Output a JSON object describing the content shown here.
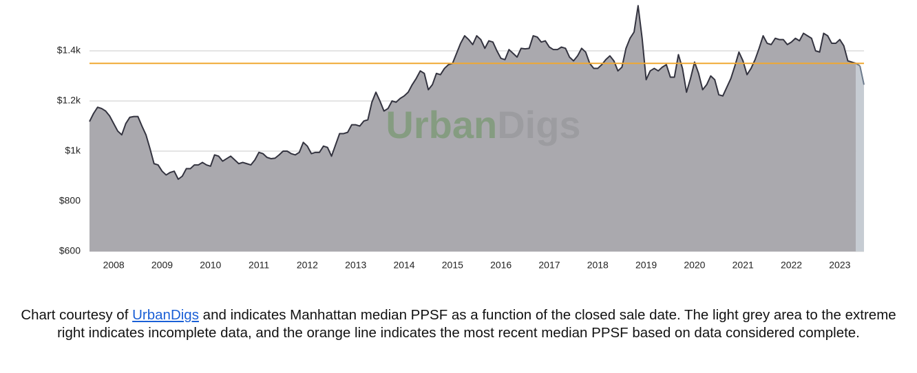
{
  "chart_data": {
    "type": "area",
    "watermark": [
      "Urban",
      "Digs"
    ],
    "watermark_colors": [
      "#7f9a7a",
      "#9a9a9e"
    ],
    "categories": [
      null,
      null,
      null,
      null,
      null,
      null,
      "2008",
      null,
      null,
      null,
      null,
      null,
      null,
      null,
      null,
      null,
      null,
      null,
      "2009",
      null,
      null,
      null,
      null,
      null,
      null,
      null,
      null,
      null,
      null,
      null,
      "2010",
      null,
      null,
      null,
      null,
      null,
      null,
      null,
      null,
      null,
      null,
      null,
      "2011",
      null,
      null,
      null,
      null,
      null,
      null,
      null,
      null,
      null,
      null,
      null,
      "2012",
      null,
      null,
      null,
      null,
      null,
      null,
      null,
      null,
      null,
      null,
      null,
      "2013",
      null,
      null,
      null,
      null,
      null,
      null,
      null,
      null,
      null,
      null,
      null,
      "2014",
      null,
      null,
      null,
      null,
      null,
      null,
      null,
      null,
      null,
      null,
      null,
      "2015",
      null,
      null,
      null,
      null,
      null,
      null,
      null,
      null,
      null,
      null,
      null,
      "2016",
      null,
      null,
      null,
      null,
      null,
      null,
      null,
      null,
      null,
      null,
      null,
      "2017",
      null,
      null,
      null,
      null,
      null,
      null,
      null,
      null,
      null,
      null,
      null,
      "2018",
      null,
      null,
      null,
      null,
      null,
      null,
      null,
      null,
      null,
      null,
      null,
      "2019",
      null,
      null,
      null,
      null,
      null,
      null,
      null,
      null,
      null,
      null,
      null,
      "2020",
      null,
      null,
      null,
      null,
      null,
      null,
      null,
      null,
      null,
      null,
      null,
      "2021",
      null,
      null,
      null,
      null,
      null,
      null,
      null,
      null,
      null,
      null,
      null,
      "2022",
      null,
      null,
      null,
      null,
      null,
      null,
      null,
      null,
      null,
      null,
      null,
      "2023",
      null,
      null,
      null,
      null,
      null,
      null
    ],
    "series": [
      {
        "color": "#33333f",
        "fill": "#aaa9ae",
        "values": [
          1118,
          1150,
          1175,
          1170,
          1160,
          1140,
          1110,
          1080,
          1065,
          1110,
          1135,
          1138,
          1138,
          1100,
          1065,
          1010,
          950,
          945,
          920,
          905,
          915,
          920,
          888,
          900,
          930,
          930,
          945,
          945,
          955,
          945,
          940,
          985,
          980,
          960,
          970,
          980,
          965,
          950,
          955,
          950,
          945,
          965,
          995,
          990,
          975,
          970,
          972,
          985,
          1000,
          1000,
          990,
          985,
          995,
          1035,
          1020,
          990,
          995,
          995,
          1020,
          1015,
          980,
          1025,
          1070,
          1070,
          1075,
          1105,
          1105,
          1100,
          1120,
          1125,
          1195,
          1235,
          1200,
          1160,
          1170,
          1200,
          1195,
          1210,
          1220,
          1235,
          1265,
          1290,
          1320,
          1310,
          1245,
          1265,
          1310,
          1305,
          1330,
          1345,
          1350,
          1390,
          1430,
          1460,
          1445,
          1425,
          1460,
          1445,
          1410,
          1440,
          1435,
          1400,
          1370,
          1365,
          1405,
          1390,
          1375,
          1410,
          1408,
          1410,
          1460,
          1455,
          1435,
          1440,
          1415,
          1405,
          1405,
          1415,
          1410,
          1375,
          1360,
          1380,
          1410,
          1395,
          1350,
          1330,
          1330,
          1345,
          1365,
          1380,
          1360,
          1320,
          1335,
          1410,
          1450,
          1475,
          1580,
          1450,
          1285,
          1320,
          1330,
          1320,
          1335,
          1345,
          1295,
          1295,
          1385,
          1330,
          1235,
          1290,
          1355,
          1310,
          1245,
          1265,
          1300,
          1285,
          1225,
          1220,
          1255,
          1290,
          1340,
          1395,
          1360,
          1305,
          1330,
          1365,
          1410,
          1460,
          1430,
          1425,
          1450,
          1445,
          1445,
          1425,
          1435,
          1450,
          1440,
          1470,
          1460,
          1450,
          1400,
          1395,
          1470,
          1460,
          1430,
          1430,
          1445,
          1420,
          1360,
          1355,
          1350,
          null,
          null
        ]
      },
      {
        "color": "#6c7a8c",
        "fill": "#c6ccd3",
        "values": [
          null,
          null,
          null,
          null,
          null,
          null,
          null,
          null,
          null,
          null,
          null,
          null,
          null,
          null,
          null,
          null,
          null,
          null,
          null,
          null,
          null,
          null,
          null,
          null,
          null,
          null,
          null,
          null,
          null,
          null,
          null,
          null,
          null,
          null,
          null,
          null,
          null,
          null,
          null,
          null,
          null,
          null,
          null,
          null,
          null,
          null,
          null,
          null,
          null,
          null,
          null,
          null,
          null,
          null,
          null,
          null,
          null,
          null,
          null,
          null,
          null,
          null,
          null,
          null,
          null,
          null,
          null,
          null,
          null,
          null,
          null,
          null,
          null,
          null,
          null,
          null,
          null,
          null,
          null,
          null,
          null,
          null,
          null,
          null,
          null,
          null,
          null,
          null,
          null,
          null,
          null,
          null,
          null,
          null,
          null,
          null,
          null,
          null,
          null,
          null,
          null,
          null,
          null,
          null,
          null,
          null,
          null,
          null,
          null,
          null,
          null,
          null,
          null,
          null,
          null,
          null,
          null,
          null,
          null,
          null,
          null,
          null,
          null,
          null,
          null,
          null,
          null,
          null,
          null,
          null,
          null,
          null,
          null,
          null,
          null,
          null,
          null,
          null,
          null,
          null,
          null,
          null,
          null,
          null,
          null,
          null,
          null,
          null,
          null,
          null,
          null,
          null,
          null,
          null,
          null,
          null,
          null,
          null,
          null,
          null,
          null,
          null,
          null,
          null,
          null,
          null,
          null,
          null,
          null,
          null,
          null,
          null,
          null,
          null,
          null,
          null,
          null,
          null,
          null,
          null,
          null,
          null,
          null,
          null,
          null,
          null,
          null,
          null,
          null,
          null,
          null,
          1340,
          1265
        ]
      }
    ],
    "reference_line": {
      "value": 1350,
      "color": "#f0a830"
    },
    "ylim": [
      600,
      1600
    ],
    "yticks": [
      {
        "value": 600,
        "label": "$600"
      },
      {
        "value": 800,
        "label": "$800"
      },
      {
        "value": 1000,
        "label": "$1k"
      },
      {
        "value": 1200,
        "label": "$1.2k"
      },
      {
        "value": 1400,
        "label": "$1.4k"
      }
    ],
    "grid": true
  },
  "caption": {
    "before": "Chart courtesy of ",
    "link": "UrbanDigs",
    "after": " and indicates Manhattan median PPSF as a function of the closed sale date.  The light grey area to the extreme right indicates incomplete data, and the orange line indicates the most recent median PPSF based on data considered complete."
  }
}
